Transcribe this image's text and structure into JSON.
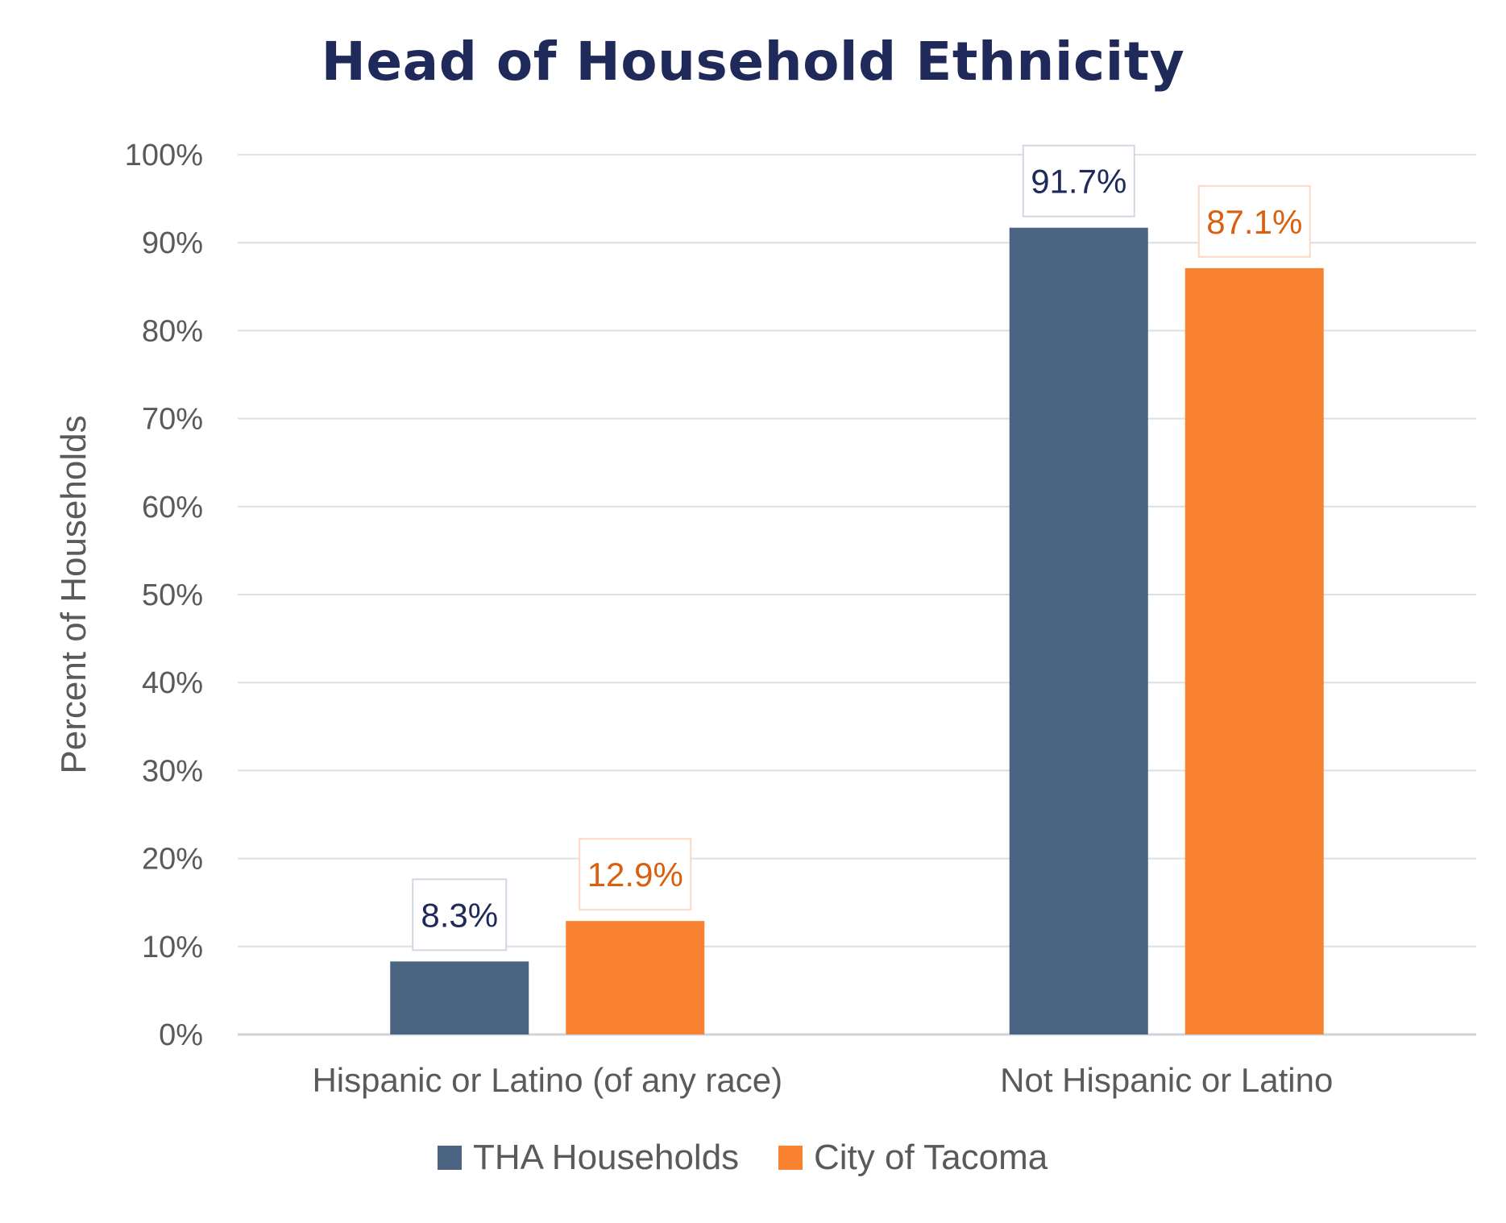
{
  "chart_data": {
    "type": "bar",
    "title": "Head of Household Ethnicity",
    "ylabel": "Percent of Households",
    "xlabel": "",
    "categories": [
      "Hispanic or Latino (of any race)",
      "Not Hispanic or Latino"
    ],
    "series": [
      {
        "name": "THA Households",
        "values": [
          8.3,
          91.7
        ],
        "labels": [
          "8.3%",
          "91.7%"
        ],
        "color": "#4a6482",
        "label_color": "#1f2a5a",
        "label_border": "#cfd8e2"
      },
      {
        "name": "City of Tacoma",
        "values": [
          12.9,
          87.1
        ],
        "labels": [
          "12.9%",
          "87.1%"
        ],
        "color": "#f98231",
        "label_color": "#d9600f",
        "label_border": "#fbd9c2"
      }
    ],
    "ylim": [
      0,
      100
    ],
    "yticks": [
      0,
      10,
      20,
      30,
      40,
      50,
      60,
      70,
      80,
      90,
      100
    ],
    "ytick_labels": [
      "0%",
      "10%",
      "20%",
      "30%",
      "40%",
      "50%",
      "60%",
      "70%",
      "80%",
      "90%",
      "100%"
    ],
    "grid": true,
    "legend_position": "bottom"
  }
}
